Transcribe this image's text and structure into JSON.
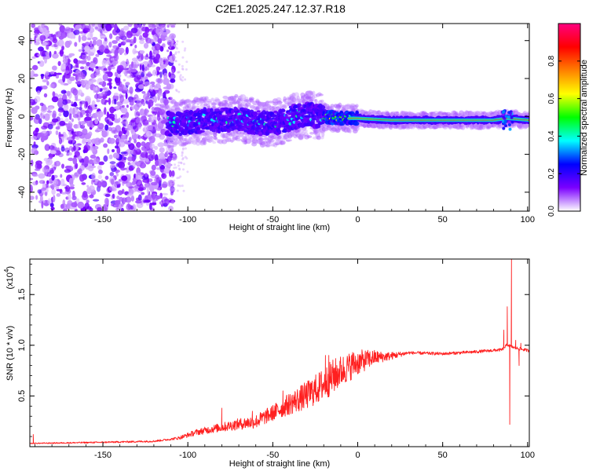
{
  "title": "C2E1.2025.247.12.37.R18",
  "chart_data": [
    {
      "type": "heatmap",
      "xlabel": "Height of straight line (km)",
      "ylabel": "Frequency (Hz)",
      "xlim": [
        -193,
        101
      ],
      "ylim": [
        -50,
        49
      ],
      "xticks": [
        -150,
        -100,
        -50,
        0,
        50,
        100
      ],
      "yticks": [
        -40,
        -20,
        0,
        20,
        40
      ],
      "colorbar": {
        "label": "Normalized spectral amplitude",
        "range": [
          0,
          1
        ],
        "ticks": [
          "0.0",
          "0.2",
          "0.4",
          "0.6",
          "0.8"
        ],
        "tick_values": [
          0,
          0.2,
          0.4,
          0.6,
          0.8
        ],
        "colors": [
          "#ffffff",
          "#7b00ff",
          "#0000ff",
          "#00ffff",
          "#00ff00",
          "#ffff00",
          "#ff8000",
          "#ff0000",
          "#ff0080"
        ]
      },
      "ridge": [
        {
          "x": -110,
          "y": -4
        },
        {
          "x": -100,
          "y": -3
        },
        {
          "x": -90,
          "y": -2
        },
        {
          "x": -80,
          "y": -2
        },
        {
          "x": -70,
          "y": -1
        },
        {
          "x": -60,
          "y": -3
        },
        {
          "x": -50,
          "y": -4
        },
        {
          "x": -40,
          "y": -1
        },
        {
          "x": -30,
          "y": 1
        },
        {
          "x": -20,
          "y": 0
        },
        {
          "x": -10,
          "y": -1
        },
        {
          "x": 0,
          "y": -1
        },
        {
          "x": 20,
          "y": -2
        },
        {
          "x": 50,
          "y": -2
        },
        {
          "x": 80,
          "y": -2
        },
        {
          "x": 88,
          "y": -1
        },
        {
          "x": 101,
          "y": -2
        }
      ]
    },
    {
      "type": "line",
      "xlabel": "Height of straight line (km)",
      "ylabel": "SNR (10 * v/v)",
      "scale_label": "(x10",
      "scale_exp": "4",
      "scale_suffix": ")",
      "xlim": [
        -193,
        101
      ],
      "ylim": [
        0,
        1.85
      ],
      "xticks": [
        -150,
        -100,
        -50,
        0,
        50,
        100
      ],
      "yticks": [
        "0.5",
        "1.0",
        "1.5"
      ],
      "ytick_values": [
        0.5,
        1.0,
        1.5
      ],
      "color": "#ff2020",
      "envelope": [
        {
          "x": -193,
          "y": 0.03
        },
        {
          "x": -150,
          "y": 0.04
        },
        {
          "x": -120,
          "y": 0.05
        },
        {
          "x": -105,
          "y": 0.08
        },
        {
          "x": -95,
          "y": 0.13
        },
        {
          "x": -85,
          "y": 0.16
        },
        {
          "x": -70,
          "y": 0.2
        },
        {
          "x": -60,
          "y": 0.22
        },
        {
          "x": -50,
          "y": 0.3
        },
        {
          "x": -40,
          "y": 0.38
        },
        {
          "x": -30,
          "y": 0.45
        },
        {
          "x": -20,
          "y": 0.55
        },
        {
          "x": -10,
          "y": 0.68
        },
        {
          "x": 0,
          "y": 0.78
        },
        {
          "x": 10,
          "y": 0.85
        },
        {
          "x": 20,
          "y": 0.88
        },
        {
          "x": 30,
          "y": 0.92
        },
        {
          "x": 50,
          "y": 0.91
        },
        {
          "x": 70,
          "y": 0.93
        },
        {
          "x": 85,
          "y": 0.95
        },
        {
          "x": 88,
          "y": 1.0
        },
        {
          "x": 92,
          "y": 0.97
        },
        {
          "x": 101,
          "y": 0.94
        }
      ],
      "noise_amplitude": [
        {
          "x": -193,
          "y": 0.01
        },
        {
          "x": -110,
          "y": 0.02
        },
        {
          "x": -95,
          "y": 0.06
        },
        {
          "x": -75,
          "y": 0.1
        },
        {
          "x": -50,
          "y": 0.16
        },
        {
          "x": -30,
          "y": 0.28
        },
        {
          "x": -15,
          "y": 0.35
        },
        {
          "x": 0,
          "y": 0.25
        },
        {
          "x": 15,
          "y": 0.1
        },
        {
          "x": 30,
          "y": 0.03
        },
        {
          "x": 80,
          "y": 0.03
        },
        {
          "x": 101,
          "y": 0.03
        }
      ],
      "spikes": [
        {
          "x": -191,
          "y": 0.12
        },
        {
          "x": -80,
          "y": 0.38
        },
        {
          "x": -62,
          "y": 0.35
        },
        {
          "x": -44,
          "y": 0.55
        },
        {
          "x": -28,
          "y": 0.62
        },
        {
          "x": -19,
          "y": 0.9
        },
        {
          "x": -17,
          "y": 0.9
        },
        {
          "x": -3,
          "y": 0.93
        },
        {
          "x": 3,
          "y": 0.9
        },
        {
          "x": 86,
          "y": 1.15
        },
        {
          "x": 88,
          "y": 1.38
        },
        {
          "x": 89.5,
          "y": 0.22
        },
        {
          "x": 90.5,
          "y": 1.85
        },
        {
          "x": 93,
          "y": 1.05
        },
        {
          "x": 95,
          "y": 0.8
        },
        {
          "x": 96,
          "y": 1.02
        }
      ]
    }
  ]
}
